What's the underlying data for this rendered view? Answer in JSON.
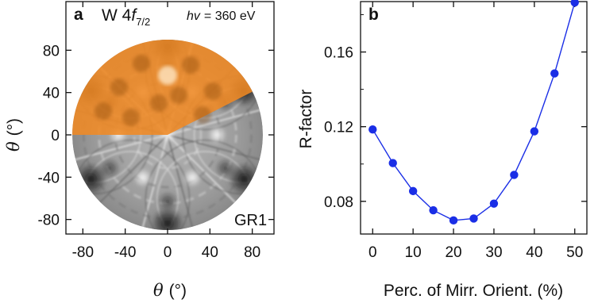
{
  "chart_data": [
    {
      "panel": "a",
      "type": "heatmap",
      "panel_label": "a",
      "title": "W 4f",
      "title_subscript": "7/2",
      "photon_energy_symbol": "hv",
      "photon_energy_text": "= 360 eV",
      "corner_label": "GR1",
      "xlabel_symbol": "θ",
      "xlabel_unit": "(°)",
      "ylabel_symbol": "θ",
      "ylabel_unit": "(°)",
      "xlim": [
        -90,
        90
      ],
      "ylim": [
        -90,
        90
      ],
      "x_ticks": [
        -80,
        -40,
        0,
        40,
        80
      ],
      "y_ticks": [
        80,
        40,
        0,
        -40,
        -80
      ],
      "highlight_color": "#f08a24",
      "colormap": "grayscale"
    },
    {
      "panel": "b",
      "type": "line",
      "panel_label": "b",
      "xlabel": "Perc. of Mirr. Orient. (%)",
      "ylabel": "R-factor",
      "xlim": [
        -3,
        53
      ],
      "ylim": [
        0.0625,
        0.187
      ],
      "x_ticks": [
        0,
        10,
        20,
        30,
        40,
        50
      ],
      "y_ticks": [
        0.08,
        0.12,
        0.16
      ],
      "y_tick_labels": [
        "0.08",
        "0.12",
        "0.16"
      ],
      "series": [
        {
          "color": "#1a2ee6",
          "x": [
            0,
            5,
            10,
            15,
            20,
            25,
            30,
            35,
            40,
            45,
            50
          ],
          "y": [
            0.1185,
            0.1005,
            0.0855,
            0.0752,
            0.0698,
            0.0708,
            0.0788,
            0.0942,
            0.1175,
            0.1485,
            0.1865
          ]
        }
      ]
    }
  ]
}
